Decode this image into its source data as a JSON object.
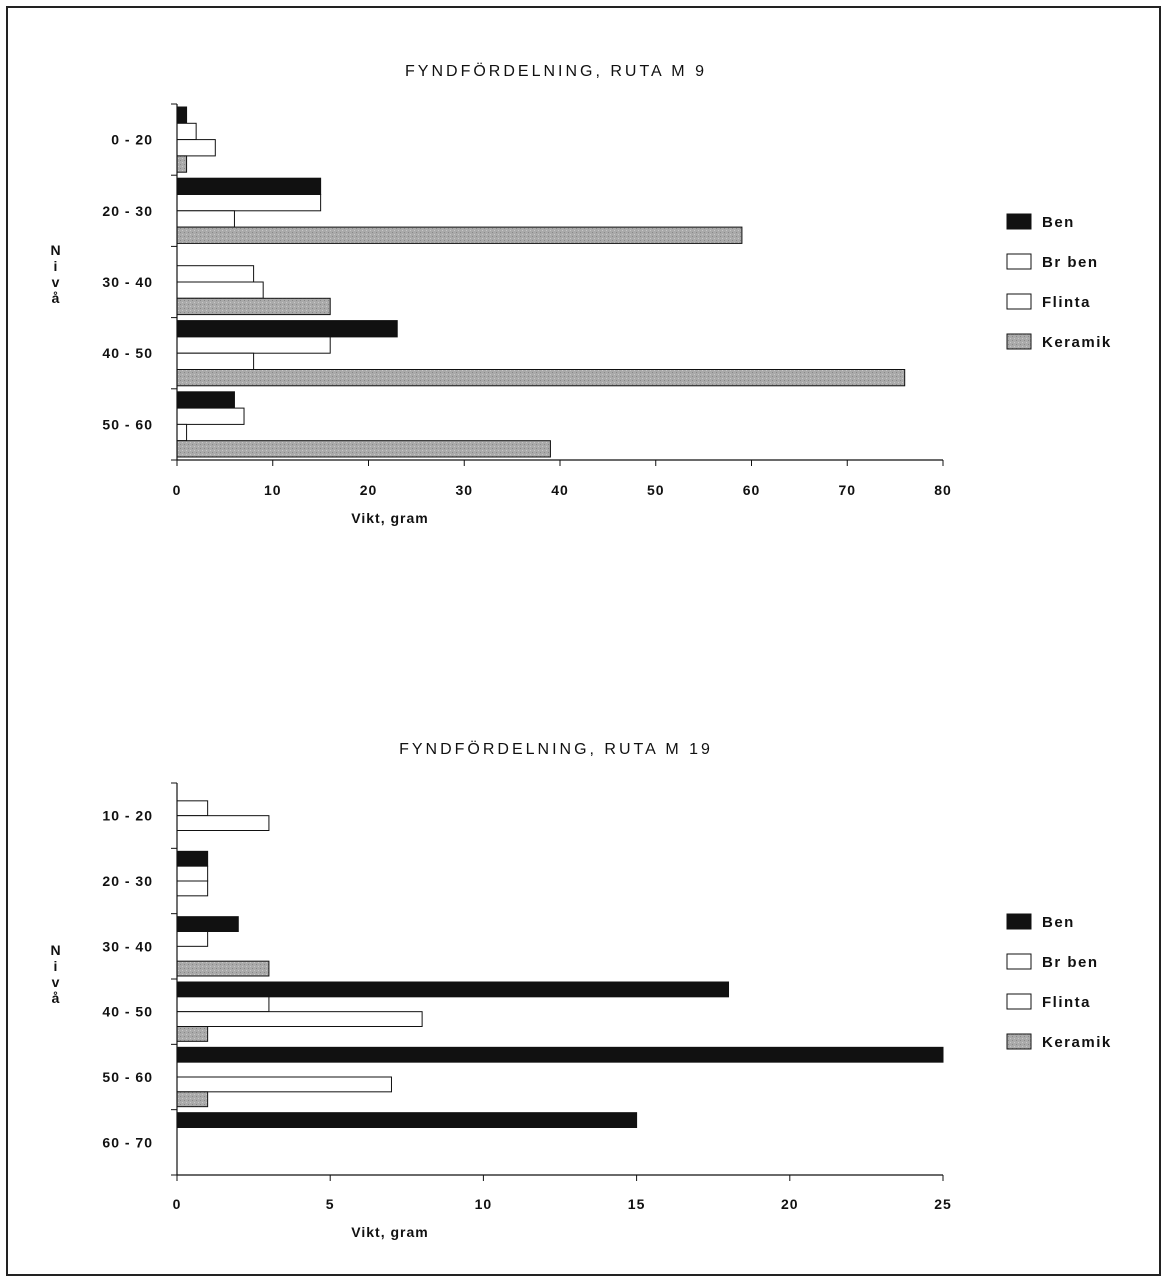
{
  "chart_data": [
    {
      "type": "bar",
      "orientation": "horizontal",
      "title": "FYNDFÖRDELNING, RUTA M 9",
      "xlabel": "Vikt, gram",
      "ylabel": "Nivå",
      "xlim": [
        0,
        80
      ],
      "xticks": [
        "0",
        "10",
        "20",
        "30",
        "40",
        "50",
        "60",
        "70",
        "80"
      ],
      "categories": [
        "0 - 20",
        "20 - 30",
        "30 - 40",
        "40 - 50",
        "50 - 60"
      ],
      "series": [
        {
          "name": "Ben",
          "color": "#111111",
          "values": [
            1,
            15,
            0,
            23,
            6
          ]
        },
        {
          "name": "Br ben",
          "color": "#ffffff",
          "values": [
            2,
            15,
            8,
            16,
            7
          ]
        },
        {
          "name": "Flinta",
          "color": "#ffffff",
          "values": [
            4,
            6,
            9,
            8,
            1
          ]
        },
        {
          "name": "Keramik",
          "color": "#a9a9a9",
          "values": [
            1,
            59,
            16,
            76,
            39
          ]
        }
      ],
      "legend": "right",
      "grid": false
    },
    {
      "type": "bar",
      "orientation": "horizontal",
      "title": "FYNDFÖRDELNING, RUTA M 19",
      "xlabel": "Vikt, gram",
      "ylabel": "Nivå",
      "xlim": [
        0,
        25
      ],
      "xticks": [
        "0",
        "5",
        "10",
        "15",
        "20",
        "25"
      ],
      "categories": [
        "10 - 20",
        "20 - 30",
        "30 - 40",
        "40 - 50",
        "50 - 60",
        "60 - 70"
      ],
      "series": [
        {
          "name": "Ben",
          "color": "#111111",
          "values": [
            0,
            1,
            2,
            18,
            25,
            15
          ]
        },
        {
          "name": "Br ben",
          "color": "#ffffff",
          "values": [
            1,
            1,
            1,
            3,
            0,
            0
          ]
        },
        {
          "name": "Flinta",
          "color": "#ffffff",
          "values": [
            3,
            1,
            0,
            8,
            7,
            0
          ]
        },
        {
          "name": "Keramik",
          "color": "#a9a9a9",
          "values": [
            0,
            0,
            3,
            1,
            1,
            0
          ]
        }
      ],
      "legend": "right",
      "grid": false
    }
  ]
}
